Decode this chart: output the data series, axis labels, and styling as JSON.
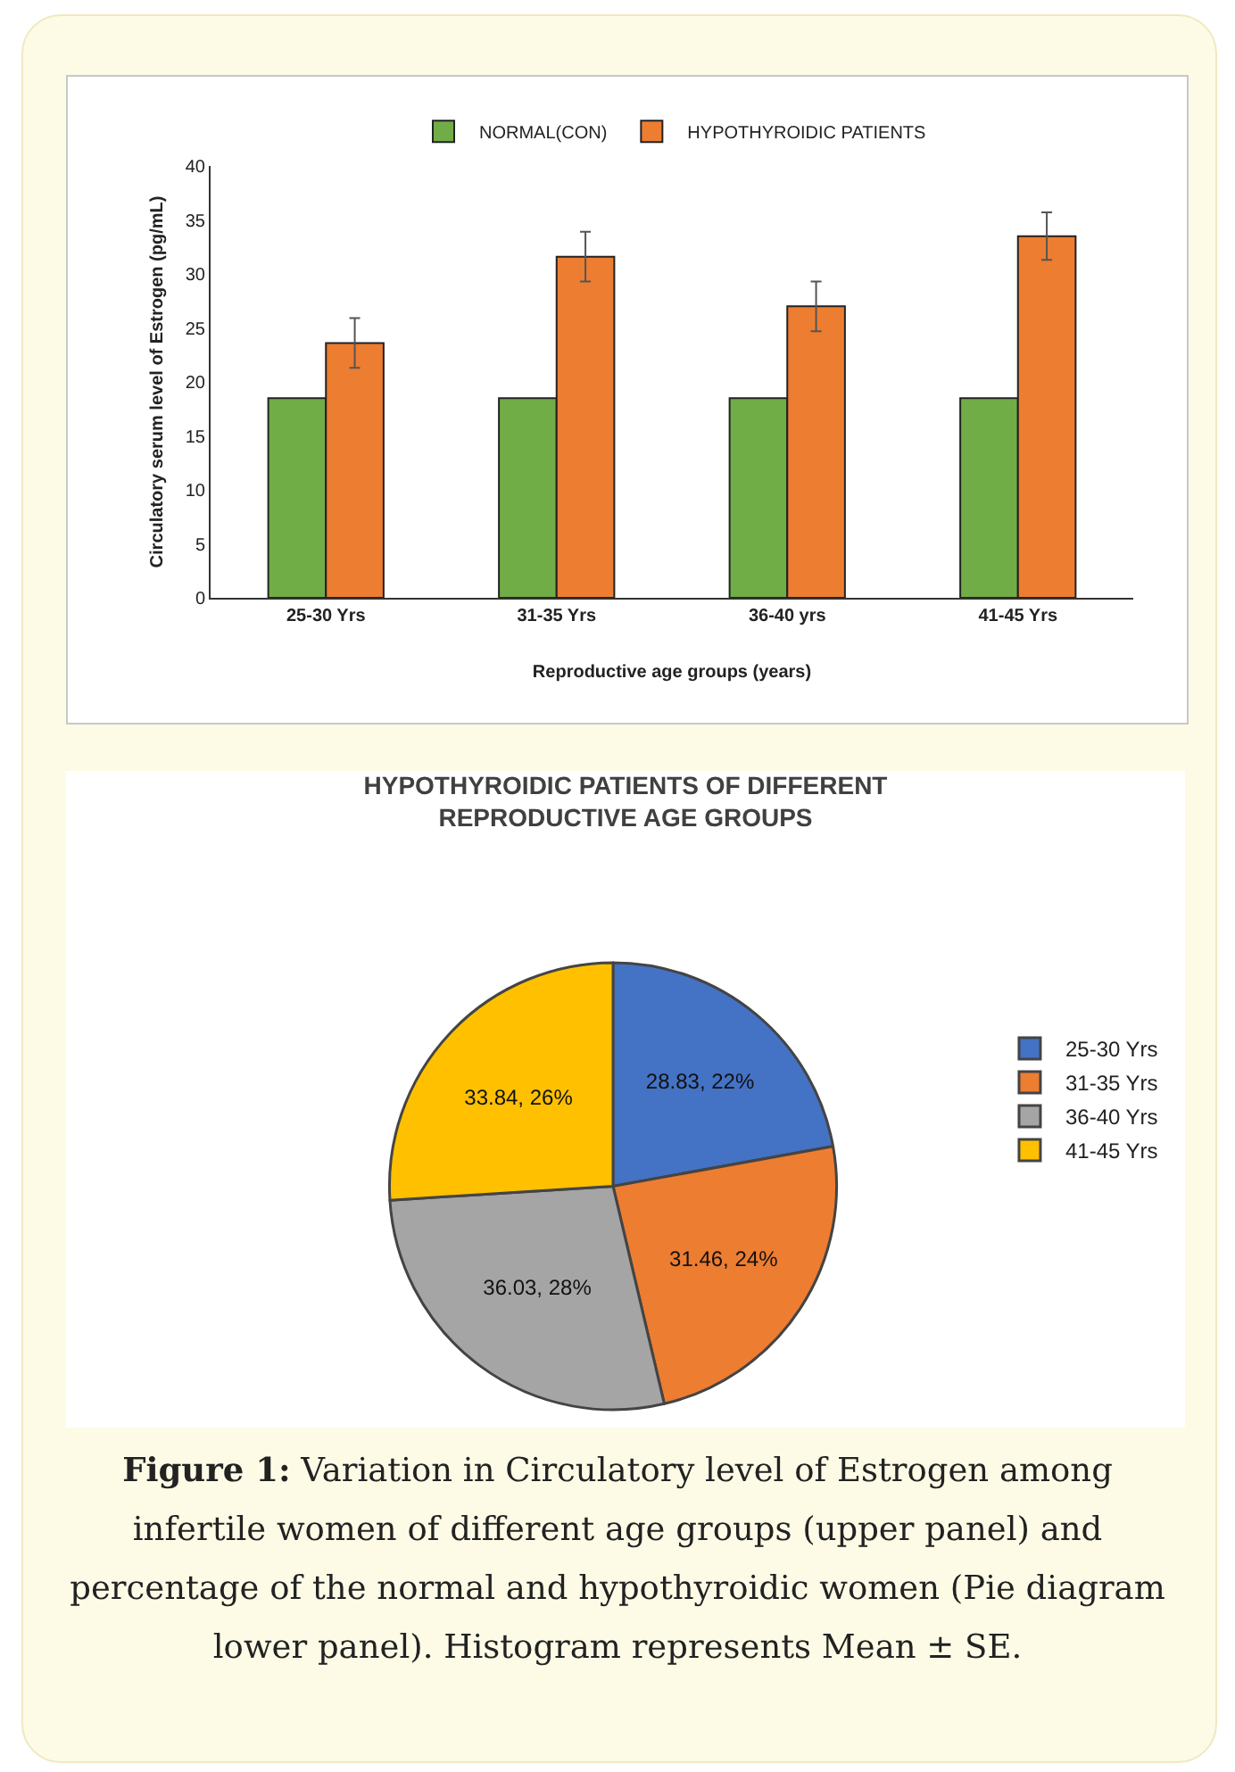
{
  "chart_data": [
    {
      "type": "bar",
      "xlabel": "Reproductive age groups (years)",
      "ylabel": "Circulatory serum level of Estrogen (pg/mL)",
      "categories": [
        "25-30 Yrs",
        "31-35 Yrs",
        "36-40 yrs",
        "41-45 Yrs"
      ],
      "series": [
        {
          "name": "NORMAL(CON)",
          "color": "#70ad47",
          "values": [
            18.5,
            18.5,
            18.5,
            18.5
          ]
        },
        {
          "name": "HYPOTHYROIDIC PATIENTS",
          "color": "#ed7d31",
          "values": [
            23.6,
            31.6,
            27.0,
            33.5
          ],
          "errors": [
            2.3,
            2.3,
            2.3,
            2.2
          ]
        }
      ],
      "ylim": [
        0,
        40
      ],
      "yticks": [
        0,
        5,
        10,
        15,
        20,
        25,
        30,
        35,
        40
      ],
      "grid": false,
      "legend": "top"
    },
    {
      "type": "pie",
      "title": "HYPOTHYROIDIC PATIENTS OF DIFFERENT REPRODUCTIVE AGE GROUPS",
      "categories": [
        "25-30 Yrs",
        "31-35 Yrs",
        "36-40 Yrs",
        "41-45 Yrs"
      ],
      "values": [
        28.83,
        31.46,
        36.03,
        33.84
      ],
      "value_labels": [
        "28.83, 22%",
        "31.46, 24%",
        "36.03, 28%",
        "33.84, 26%"
      ],
      "colors": [
        "#4472c4",
        "#ed7d31",
        "#a5a5a5",
        "#ffc000"
      ],
      "legend": "right",
      "annotations": [
        "Figure 1: Variation in Circulatory level of Estrogen among infertile women of different age groups (upper panel) and percentage of the normal and hypothyroidic women (Pie diagram lower panel). Histogram represents Mean ± SE."
      ]
    }
  ]
}
